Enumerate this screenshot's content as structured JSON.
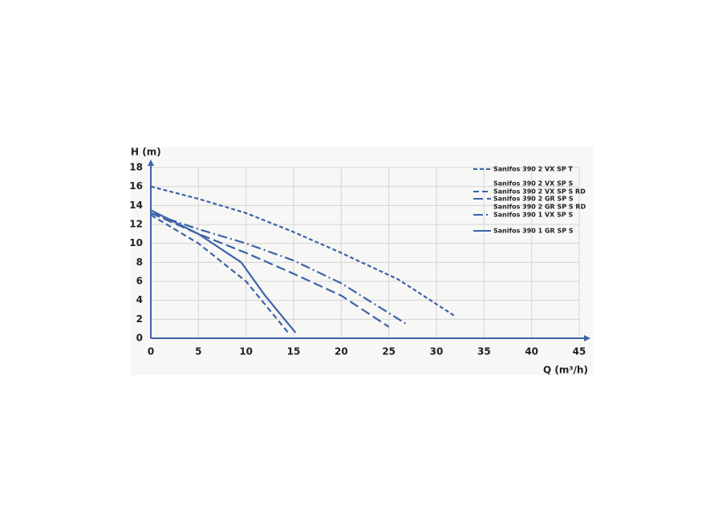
{
  "chart_data": {
    "type": "line",
    "ylabel": "H (m)",
    "xlabel": "Q (m³/h)",
    "xlim": [
      0,
      45
    ],
    "xticks": [
      0,
      5,
      10,
      15,
      20,
      25,
      30,
      35,
      40,
      45
    ],
    "ylim": [
      0,
      18
    ],
    "yticks": [
      0,
      2,
      4,
      6,
      8,
      10,
      12,
      14,
      16,
      18
    ],
    "grid": true,
    "legend": "upper right",
    "series": [
      {
        "name": "Sanifos 390 2 VX SP T",
        "color": "#3d63a8",
        "dash": "5,3",
        "x": [
          0,
          5,
          10,
          15,
          20,
          26,
          32
        ],
        "values": [
          16,
          14.7,
          13.2,
          11.2,
          9,
          6.2,
          2.3
        ]
      },
      {
        "name": "Sanifos 390 2 VX SP S",
        "color": "#3d63a8",
        "dash": "",
        "x": [],
        "values": []
      },
      {
        "name": "Sanifos 390 2 VX SP S RD",
        "color": "#3d63a8",
        "dash": "7,4",
        "x": [
          0,
          5,
          10,
          14.5
        ],
        "values": [
          13,
          10,
          6,
          0.5
        ]
      },
      {
        "name": "Sanifos 390 2 GR SP S",
        "color": "#3d63a8",
        "dash": "12,5",
        "x": [
          0,
          5,
          10,
          15,
          20,
          25
        ],
        "values": [
          13.2,
          11,
          9,
          6.8,
          4.5,
          1.2
        ]
      },
      {
        "name": "Sanifos 390 2 GR SP S RD",
        "color": "#3d63a8",
        "dash": "",
        "x": [],
        "values": []
      },
      {
        "name": "Sanifos 390 1 VX SP S",
        "color": "#3d63a8",
        "dash": "12,4,2,4",
        "x": [
          0,
          5,
          10,
          15,
          20,
          27
        ],
        "values": [
          13.2,
          11.5,
          10,
          8.2,
          5.8,
          1.4
        ]
      },
      {
        "name": "Sanifos 390 1 GR SP S",
        "color": "#3d63a8",
        "dash": "",
        "x": [
          0,
          5,
          9.5,
          12,
          15.2
        ],
        "values": [
          13.5,
          11,
          8,
          4.5,
          0.6
        ]
      }
    ]
  }
}
